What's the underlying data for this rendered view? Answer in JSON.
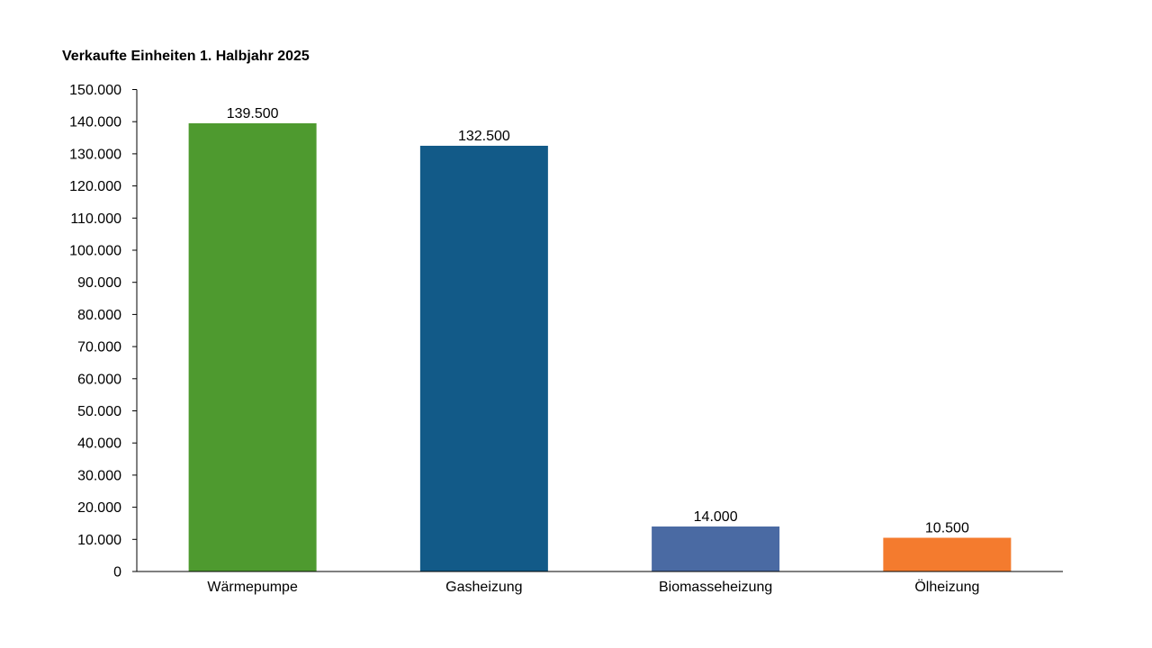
{
  "chart_data": {
    "type": "bar",
    "title": "Verkaufte Einheiten 1. Halbjahr 2025",
    "categories": [
      "Wärmepumpe",
      "Gasheizung",
      "Biomasseheizung",
      "Ölheizung"
    ],
    "values": [
      139500,
      132500,
      14000,
      10500
    ],
    "value_labels": [
      "139.500",
      "132.500",
      "14.000",
      "10.500"
    ],
    "bar_colors": [
      "#4e9a2f",
      "#125a88",
      "#4a6aa3",
      "#f47b2e"
    ],
    "ylim": [
      0,
      150000
    ],
    "ytick_values": [
      0,
      10000,
      20000,
      30000,
      40000,
      50000,
      60000,
      70000,
      80000,
      90000,
      100000,
      110000,
      120000,
      130000,
      140000,
      150000
    ],
    "ytick_labels": [
      "0",
      "10.000",
      "20.000",
      "30.000",
      "40.000",
      "50.000",
      "60.000",
      "70.000",
      "80.000",
      "90.000",
      "100.000",
      "110.000",
      "120.000",
      "130.000",
      "140.000",
      "150.000"
    ],
    "grid": false,
    "legend": "none",
    "xlabel": "",
    "ylabel": ""
  }
}
